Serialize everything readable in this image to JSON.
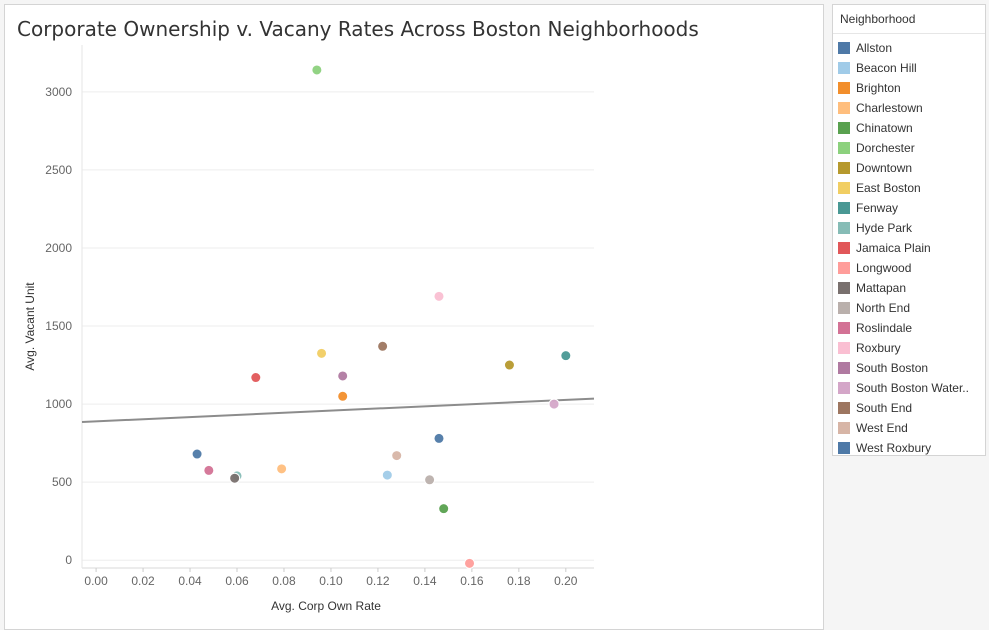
{
  "title": "Corporate Ownership v. Vacany Rates Across Boston Neighborhoods",
  "legend": {
    "title": "Neighborhood",
    "items": [
      {
        "label": "Allston",
        "color": "#4e79a7"
      },
      {
        "label": "Beacon Hill",
        "color": "#a0cbe8"
      },
      {
        "label": "Brighton",
        "color": "#f28e2b"
      },
      {
        "label": "Charlestown",
        "color": "#ffbe7d"
      },
      {
        "label": "Chinatown",
        "color": "#59a14f"
      },
      {
        "label": "Dorchester",
        "color": "#8cd17d"
      },
      {
        "label": "Downtown",
        "color": "#b6992d"
      },
      {
        "label": "East Boston",
        "color": "#f1ce63"
      },
      {
        "label": "Fenway",
        "color": "#499894"
      },
      {
        "label": "Hyde Park",
        "color": "#86bcb6"
      },
      {
        "label": "Jamaica Plain",
        "color": "#e15759"
      },
      {
        "label": "Longwood",
        "color": "#ff9d9a"
      },
      {
        "label": "Mattapan",
        "color": "#79706e"
      },
      {
        "label": "North End",
        "color": "#bab0ac"
      },
      {
        "label": "Roslindale",
        "color": "#d37295"
      },
      {
        "label": "Roxbury",
        "color": "#fabfd2"
      },
      {
        "label": "South Boston",
        "color": "#b07aa1"
      },
      {
        "label": "South Boston Water..",
        "color": "#d4a6c8"
      },
      {
        "label": "South End",
        "color": "#9d7660"
      },
      {
        "label": "West End",
        "color": "#d7b5a6"
      },
      {
        "label": "West Roxbury",
        "color": "#4e79a7"
      }
    ]
  },
  "chart_data": {
    "type": "scatter",
    "title": "Corporate Ownership v. Vacany Rates Across Boston Neighborhoods",
    "xlabel": "Avg. Corp Own Rate",
    "ylabel": "Avg. Vacant Unit",
    "xlim": [
      -0.006,
      0.212
    ],
    "ylim": [
      -50,
      3300
    ],
    "xticks": [
      "0.00",
      "0.02",
      "0.04",
      "0.06",
      "0.08",
      "0.10",
      "0.12",
      "0.14",
      "0.16",
      "0.18",
      "0.20"
    ],
    "xtick_values": [
      0,
      0.02,
      0.04,
      0.06,
      0.08,
      0.1,
      0.12,
      0.14,
      0.16,
      0.18,
      0.2
    ],
    "yticks": [
      "0",
      "500",
      "1000",
      "1500",
      "2000",
      "2500",
      "3000"
    ],
    "ytick_values": [
      0,
      500,
      1000,
      1500,
      2000,
      2500,
      3000
    ],
    "grid": true,
    "trend_line": {
      "x": [
        -0.006,
        0.212
      ],
      "y": [
        885,
        1035
      ]
    },
    "points": [
      {
        "name": "Allston",
        "x": 0.043,
        "y": 680
      },
      {
        "name": "Beacon Hill",
        "x": 0.124,
        "y": 545
      },
      {
        "name": "Brighton",
        "x": 0.105,
        "y": 1050
      },
      {
        "name": "Charlestown",
        "x": 0.079,
        "y": 585
      },
      {
        "name": "Chinatown",
        "x": 0.148,
        "y": 330
      },
      {
        "name": "Dorchester",
        "x": 0.094,
        "y": 3140
      },
      {
        "name": "Downtown",
        "x": 0.176,
        "y": 1250
      },
      {
        "name": "East Boston",
        "x": 0.096,
        "y": 1325
      },
      {
        "name": "Fenway",
        "x": 0.2,
        "y": 1310
      },
      {
        "name": "Hyde Park",
        "x": 0.06,
        "y": 540
      },
      {
        "name": "Jamaica Plain",
        "x": 0.068,
        "y": 1170
      },
      {
        "name": "Longwood",
        "x": 0.159,
        "y": -20
      },
      {
        "name": "Mattapan",
        "x": 0.059,
        "y": 525
      },
      {
        "name": "North End",
        "x": 0.142,
        "y": 515
      },
      {
        "name": "Roslindale",
        "x": 0.048,
        "y": 575
      },
      {
        "name": "Roxbury",
        "x": 0.146,
        "y": 1690
      },
      {
        "name": "South Boston",
        "x": 0.105,
        "y": 1180
      },
      {
        "name": "South Boston Water..",
        "x": 0.195,
        "y": 1000
      },
      {
        "name": "South End",
        "x": 0.122,
        "y": 1370
      },
      {
        "name": "West End",
        "x": 0.128,
        "y": 670
      },
      {
        "name": "West Roxbury",
        "x": 0.146,
        "y": 780
      }
    ]
  }
}
